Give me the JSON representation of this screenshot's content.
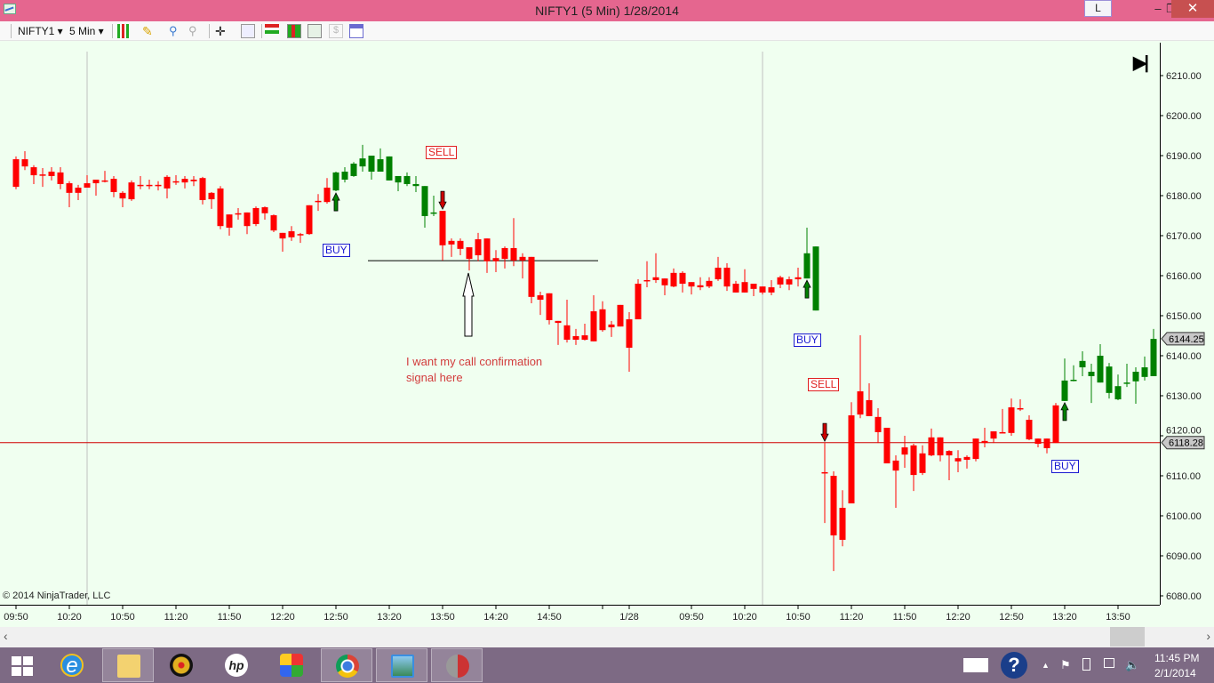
{
  "window": {
    "title": "NIFTY1 (5 Min)  1/28/2014",
    "l_button": "L",
    "minimize": "–",
    "restore": "❐",
    "close": "✕"
  },
  "toolbar": {
    "instrument": "NIFTY1 ▾",
    "interval": "5 Min ▾",
    "icons": [
      "chart-style-icon",
      "pencil-icon",
      "zoom-in-icon",
      "zoom-out-icon",
      "crosshair-icon",
      "magnifier-icon",
      "strategies-icon",
      "indicators-icon",
      "chart-trader-icon",
      "dollar-icon",
      "properties-icon"
    ]
  },
  "chart": {
    "copyright": "© 2014 NinjaTrader, LLC",
    "note_line1": "I want my call confirmation",
    "note_line2": "signal here",
    "end_icon": "▶|",
    "last_price_label": "6144.25",
    "line_price_label": "6118.28"
  },
  "chart_data": {
    "type": "candlestick",
    "instrument": "NIFTY1",
    "interval": "5 Min",
    "colors": {
      "r": "#ff0000",
      "g": "#008000",
      "line": "#d00000"
    },
    "y_ticks": [
      "6210.00",
      "6200.00",
      "6190.00",
      "6180.00",
      "6170.00",
      "6160.00",
      "6150.00",
      "6140.00",
      "6130.00",
      "6120.00",
      "6110.00",
      "6100.00",
      "6090.00",
      "6080.00"
    ],
    "ylim": [
      6080,
      6210
    ],
    "x_ticks": [
      {
        "label": "09:50",
        "bar": 0
      },
      {
        "label": "10:20",
        "bar": 6
      },
      {
        "label": "10:50",
        "bar": 12
      },
      {
        "label": "11:20",
        "bar": 18
      },
      {
        "label": "11:50",
        "bar": 24
      },
      {
        "label": "12:20",
        "bar": 30
      },
      {
        "label": "12:50",
        "bar": 36
      },
      {
        "label": "13:20",
        "bar": 42
      },
      {
        "label": "13:50",
        "bar": 48
      },
      {
        "label": "14:20",
        "bar": 54
      },
      {
        "label": "14:50",
        "bar": 60
      },
      {
        "label": "",
        "bar": 66
      },
      {
        "label": "1/28",
        "bar": 69
      },
      {
        "label": "09:50",
        "bar": 76
      },
      {
        "label": "10:20",
        "bar": 82
      },
      {
        "label": "10:50",
        "bar": 88
      },
      {
        "label": "11:20",
        "bar": 94
      },
      {
        "label": "11:50",
        "bar": 100
      },
      {
        "label": "12:20",
        "bar": 106
      },
      {
        "label": "12:50",
        "bar": 112
      },
      {
        "label": "13:20",
        "bar": 118
      },
      {
        "label": "13:50",
        "bar": 124
      }
    ],
    "last_price": 6144.25,
    "horizontal_line_price": 6118.28,
    "support_line_price": 6163.75,
    "candles_ohlc": [
      [
        6189.1,
        6189.8,
        6181.6,
        6182.2,
        "r"
      ],
      [
        6189.1,
        6191.1,
        6186.4,
        6187.3,
        "r"
      ],
      [
        6187.1,
        6187.6,
        6182.9,
        6185.1,
        "r"
      ],
      [
        6185.3,
        6186.9,
        6182.2,
        6185.3,
        "r"
      ],
      [
        6186,
        6187.1,
        6183.8,
        6184.9,
        "r"
      ],
      [
        6185.8,
        6187.1,
        6181.6,
        6182.9,
        "r"
      ],
      [
        6183.1,
        6183.6,
        6177.1,
        6180.7,
        "r"
      ],
      [
        6182,
        6182.7,
        6178.9,
        6180.7,
        "r"
      ],
      [
        6183.1,
        6185.1,
        6182,
        6182,
        "r"
      ],
      [
        6184,
        6184,
        6180,
        6183.1,
        "r"
      ],
      [
        6183.8,
        6186.2,
        6183.3,
        6183.8,
        "r"
      ],
      [
        6184.2,
        6184.9,
        6179.6,
        6180.9,
        "r"
      ],
      [
        6180.7,
        6181.1,
        6177.1,
        6179.3,
        "r"
      ],
      [
        6183.3,
        6183.8,
        6178.7,
        6179.1,
        "r"
      ],
      [
        6182.7,
        6184.9,
        6181.6,
        6182.7,
        "r"
      ],
      [
        6182.7,
        6184,
        6181.6,
        6182.7,
        "r"
      ],
      [
        6182.7,
        6183.6,
        6181.3,
        6182.7,
        "r"
      ],
      [
        6184.7,
        6185.1,
        6179.3,
        6181.8,
        "r"
      ],
      [
        6183.6,
        6185.1,
        6182.7,
        6183.6,
        "r"
      ],
      [
        6184.2,
        6184.9,
        6181.8,
        6183.3,
        "r"
      ],
      [
        6184,
        6184.9,
        6182.4,
        6183.6,
        "r"
      ],
      [
        6184.4,
        6184.7,
        6177.8,
        6178.9,
        "r"
      ],
      [
        6180.7,
        6180.9,
        6176.7,
        6179.1,
        "r"
      ],
      [
        6181.8,
        6182.4,
        6171.6,
        6172.4,
        "r"
      ],
      [
        6175.3,
        6175.3,
        6170,
        6172,
        "r"
      ],
      [
        6175.6,
        6176.9,
        6174,
        6175.6,
        "r"
      ],
      [
        6175.8,
        6175.8,
        6170.4,
        6172.4,
        "r"
      ],
      [
        6176.9,
        6177.3,
        6172.4,
        6172.9,
        "r"
      ],
      [
        6177.1,
        6177.3,
        6174,
        6175.6,
        "r"
      ],
      [
        6175.1,
        6175.3,
        6170.9,
        6171.3,
        "r"
      ],
      [
        6170.7,
        6170.7,
        6166,
        6169.3,
        "r"
      ],
      [
        6171.1,
        6172.4,
        6168.7,
        6169.6,
        "r"
      ],
      [
        6170.4,
        6170.7,
        6168.2,
        6170.4,
        "r"
      ],
      [
        6177.6,
        6177.6,
        6170.2,
        6170.4,
        "r"
      ],
      [
        6178.7,
        6180.4,
        6176.2,
        6178.7,
        "r"
      ],
      [
        6182,
        6184.4,
        6178,
        6178.4,
        "r"
      ],
      [
        6181.3,
        6186,
        6181.1,
        6185.8,
        "g"
      ],
      [
        6184,
        6187.1,
        6183.3,
        6186,
        "g"
      ],
      [
        6184.9,
        6188.4,
        6184.7,
        6188,
        "g"
      ],
      [
        6187.3,
        6192.7,
        6186,
        6189.3,
        "g"
      ],
      [
        6186,
        6190,
        6184,
        6190,
        "g"
      ],
      [
        6186,
        6191.8,
        6186,
        6189.1,
        "g"
      ],
      [
        6183.8,
        6189.8,
        6183.8,
        6189.8,
        "g"
      ],
      [
        6183.3,
        6184.9,
        6181.1,
        6184.9,
        "g"
      ],
      [
        6182.9,
        6185.8,
        6182.4,
        6184.9,
        "g"
      ],
      [
        6182.4,
        6184.9,
        6180.9,
        6182.9,
        "g"
      ],
      [
        6174.9,
        6182.4,
        6172,
        6182.4,
        "g"
      ],
      [
        6175.8,
        6180,
        6174.9,
        6175.8,
        "g"
      ],
      [
        6176.2,
        6176.2,
        6163.8,
        6167.6,
        "r"
      ],
      [
        6168.7,
        6169.3,
        6164.7,
        6167.8,
        "r"
      ],
      [
        6168.7,
        6169.3,
        6165.1,
        6166.7,
        "r"
      ],
      [
        6167.1,
        6167.1,
        6161.3,
        6164.2,
        "r"
      ],
      [
        6169.1,
        6170.7,
        6163.6,
        6165.1,
        "r"
      ],
      [
        6169.3,
        6169.3,
        6160.7,
        6163.6,
        "r"
      ],
      [
        6164.4,
        6166.4,
        6160.9,
        6163.6,
        "r"
      ],
      [
        6166.9,
        6167.3,
        6161.8,
        6164.2,
        "r"
      ],
      [
        6166.9,
        6174.4,
        6162.4,
        6163.8,
        "r"
      ],
      [
        6164.7,
        6165.6,
        6159.3,
        6163.8,
        "r"
      ],
      [
        6164.7,
        6164.7,
        6153.1,
        6154.7,
        "r"
      ],
      [
        6155.1,
        6156,
        6150.2,
        6154,
        "r"
      ],
      [
        6155.6,
        6155.6,
        6147.8,
        6148.9,
        "r"
      ],
      [
        6148.7,
        6148.7,
        6142.7,
        6148.2,
        "r"
      ],
      [
        6147.6,
        6154,
        6143.3,
        6144,
        "r"
      ],
      [
        6144.9,
        6146.7,
        6142.7,
        6144,
        "r"
      ],
      [
        6145.1,
        6148,
        6143.8,
        6144,
        "r"
      ],
      [
        6151.1,
        6155.1,
        6143.6,
        6143.6,
        "r"
      ],
      [
        6151.6,
        6153.6,
        6146,
        6146.4,
        "r"
      ],
      [
        6147.8,
        6148.7,
        6144.7,
        6147.1,
        "r"
      ],
      [
        6152.7,
        6152.7,
        6147.3,
        6147.3,
        "r"
      ],
      [
        6149.1,
        6150.9,
        6136,
        6142,
        "r"
      ],
      [
        6158,
        6159.1,
        6149.1,
        6149.1,
        "r"
      ],
      [
        6158.9,
        6163.6,
        6157.1,
        6158.9,
        "r"
      ],
      [
        6159.6,
        6165.6,
        6158.2,
        6158.9,
        "r"
      ],
      [
        6159.3,
        6159.3,
        6155.1,
        6157.6,
        "r"
      ],
      [
        6160.7,
        6161.8,
        6157.1,
        6157.3,
        "r"
      ],
      [
        6160.7,
        6161.1,
        6155.8,
        6158,
        "r"
      ],
      [
        6158.4,
        6158.4,
        6155.3,
        6157.3,
        "r"
      ],
      [
        6157.6,
        6159.6,
        6156.4,
        6157.1,
        "r"
      ],
      [
        6158.7,
        6159.6,
        6156.9,
        6157.3,
        "r"
      ],
      [
        6162,
        6164.7,
        6158.7,
        6159.1,
        "r"
      ],
      [
        6162,
        6163.1,
        6156.2,
        6157.3,
        "r"
      ],
      [
        6158,
        6158.7,
        6155.8,
        6155.8,
        "r"
      ],
      [
        6158.4,
        6161.6,
        6155.8,
        6155.8,
        "r"
      ],
      [
        6158,
        6158,
        6154.9,
        6156.7,
        "r"
      ],
      [
        6157.3,
        6157.3,
        6155.3,
        6155.8,
        "r"
      ],
      [
        6157.1,
        6158.9,
        6155.1,
        6155.8,
        "r"
      ],
      [
        6159.6,
        6160,
        6156.9,
        6157.8,
        "r"
      ],
      [
        6159.1,
        6159.8,
        6156.4,
        6157.8,
        "r"
      ],
      [
        6159.6,
        6162,
        6157.3,
        6159.1,
        "r"
      ],
      [
        6159.3,
        6172,
        6159.3,
        6165.6,
        "g"
      ],
      [
        6151.3,
        6167.3,
        6151.3,
        6167.3,
        "g"
      ],
      [
        6110.9,
        6118.2,
        6098.2,
        6110.9,
        "r"
      ],
      [
        6110,
        6111.1,
        6086.2,
        6095.1,
        "r"
      ],
      [
        6102,
        6106.4,
        6092.4,
        6094,
        "r"
      ],
      [
        6125.1,
        6128.4,
        6103.1,
        6103.1,
        "r"
      ],
      [
        6131.1,
        6145.1,
        6124.4,
        6125.3,
        "r"
      ],
      [
        6128.9,
        6133.1,
        6124.9,
        6124.9,
        "r"
      ],
      [
        6124.7,
        6126.9,
        6118.2,
        6120.9,
        "r"
      ],
      [
        6122,
        6122,
        6113.1,
        6113.1,
        "r"
      ],
      [
        6113.8,
        6115.1,
        6102,
        6111.3,
        "r"
      ],
      [
        6117.1,
        6120,
        6112,
        6115.3,
        "r"
      ],
      [
        6117.6,
        6118,
        6106.2,
        6110.2,
        "r"
      ],
      [
        6115.6,
        6117.6,
        6110.2,
        6110.7,
        "r"
      ],
      [
        6119.6,
        6121.8,
        6114.9,
        6115.1,
        "r"
      ],
      [
        6119.6,
        6119.6,
        6113.6,
        6115.1,
        "r"
      ],
      [
        6116.2,
        6116.4,
        6108.9,
        6115.1,
        "r"
      ],
      [
        6114.4,
        6116.4,
        6110.9,
        6113.6,
        "r"
      ],
      [
        6114.7,
        6115.1,
        6111.8,
        6114,
        "r"
      ],
      [
        6119.3,
        6119.3,
        6113.6,
        6114.2,
        "r"
      ],
      [
        6118.7,
        6122,
        6117.1,
        6118.2,
        "r"
      ],
      [
        6121.1,
        6121.1,
        6118.2,
        6119.3,
        "r"
      ],
      [
        6120.9,
        6126.7,
        6120.7,
        6120.9,
        "r"
      ],
      [
        6127.1,
        6129.3,
        6120,
        6120.7,
        "r"
      ],
      [
        6126.9,
        6129.1,
        6126.2,
        6126.9,
        "r"
      ],
      [
        6124,
        6125.1,
        6118.9,
        6119.1,
        "r"
      ],
      [
        6119.3,
        6119.3,
        6117.1,
        6118,
        "r"
      ],
      [
        6119.3,
        6119.3,
        6115.6,
        6116.9,
        "r"
      ],
      [
        6127.6,
        6128.2,
        6118.2,
        6118.2,
        "r"
      ],
      [
        6128.7,
        6139.3,
        6128.7,
        6133.8,
        "g"
      ],
      [
        6134,
        6137.6,
        6133.6,
        6134,
        "g"
      ],
      [
        6137.1,
        6141.1,
        6134.9,
        6138.7,
        "g"
      ],
      [
        6134.9,
        6138,
        6128.2,
        6136,
        "g"
      ],
      [
        6133.3,
        6142.9,
        6133.3,
        6140,
        "g"
      ],
      [
        6130.7,
        6138.2,
        6129.3,
        6137.3,
        "g"
      ],
      [
        6129.1,
        6135.3,
        6128.9,
        6132.4,
        "g"
      ],
      [
        6133.3,
        6138,
        6132.2,
        6133.3,
        "g"
      ],
      [
        6133.6,
        6137.1,
        6128,
        6136,
        "g"
      ],
      [
        6134.7,
        6139.8,
        6133.8,
        6137.1,
        "g"
      ],
      [
        6134.9,
        6146.7,
        6134.9,
        6144.2,
        "g"
      ]
    ],
    "signals": [
      {
        "type": "buy",
        "bar": 36,
        "label": "BUY",
        "label_price": 6166.5
      },
      {
        "type": "sell",
        "bar": 48,
        "label": "SELL",
        "label_price": 6191
      },
      {
        "type": "buy",
        "bar": 89,
        "label": "BUY",
        "label_price": 6144
      },
      {
        "type": "sell",
        "bar": 91,
        "label": "SELL",
        "label_price": 6132.8
      },
      {
        "type": "buy",
        "bar": 118,
        "label": "BUY",
        "label_price": 6112.5
      }
    ]
  },
  "taskbar": {
    "apps": [
      "start-button",
      "internet-explorer",
      "file-explorer",
      "webcam-app",
      "hp-app",
      "puzzle-app",
      "chrome",
      "photos-app",
      "ninjatrader-app"
    ],
    "clock_time": "11:45 PM",
    "clock_date": "2/1/2014"
  }
}
